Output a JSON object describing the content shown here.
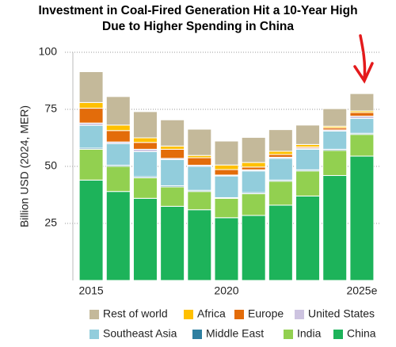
{
  "chart_data": {
    "type": "stacked_bar",
    "title": "Investment in Coal-Fired Generation Hit a 10-Year High Due to Higher Spending in China",
    "ylabel": "Billion USD (2024, MER)",
    "categories": [
      "2015",
      null,
      null,
      null,
      null,
      "2020",
      null,
      null,
      null,
      null,
      "2025e"
    ],
    "series": [
      {
        "name": "China",
        "color": "#1db35a",
        "values": [
          44,
          39,
          36,
          32.5,
          31,
          27.5,
          28.5,
          33,
          37,
          46,
          54.5
        ]
      },
      {
        "name": "India",
        "color": "#92d050",
        "values": [
          13.5,
          11,
          9,
          8.5,
          8,
          8.5,
          9.5,
          10.5,
          11,
          11,
          9.5
        ]
      },
      {
        "name": "Middle East",
        "color": "#2e7fa0",
        "values": [
          0.5,
          0.5,
          0.5,
          0.5,
          0.5,
          0.3,
          0.5,
          0.5,
          0.5,
          0.5,
          0.5
        ]
      },
      {
        "name": "Southeast Asia",
        "color": "#92cddc",
        "values": [
          10,
          9.5,
          11,
          11.5,
          10.5,
          9.5,
          9.5,
          9.5,
          9,
          8,
          6.5
        ]
      },
      {
        "name": "United States",
        "color": "#cdc3e0",
        "values": [
          1,
          0.7,
          1,
          0.5,
          0.5,
          0.4,
          0.5,
          0.5,
          0.5,
          0.5,
          1
        ]
      },
      {
        "name": "Europe",
        "color": "#e36c0a",
        "values": [
          6.5,
          5,
          3,
          4,
          3.3,
          2.4,
          1.2,
          1.2,
          0.5,
          0.9,
          1.6
        ]
      },
      {
        "name": "Africa",
        "color": "#ffc000",
        "values": [
          2.5,
          2.4,
          2,
          1.4,
          1,
          2,
          2,
          1.4,
          1.1,
          0.7,
          0.7
        ]
      },
      {
        "name": "Rest of world",
        "color": "#c4b99a",
        "values": [
          13.5,
          12.5,
          11.5,
          11.5,
          11.5,
          10.5,
          11,
          9.5,
          8.5,
          7.7,
          7.6
        ]
      }
    ],
    "ylim": [
      0,
      100
    ],
    "yticks": [
      25,
      50,
      75,
      100
    ],
    "grid": true
  }
}
